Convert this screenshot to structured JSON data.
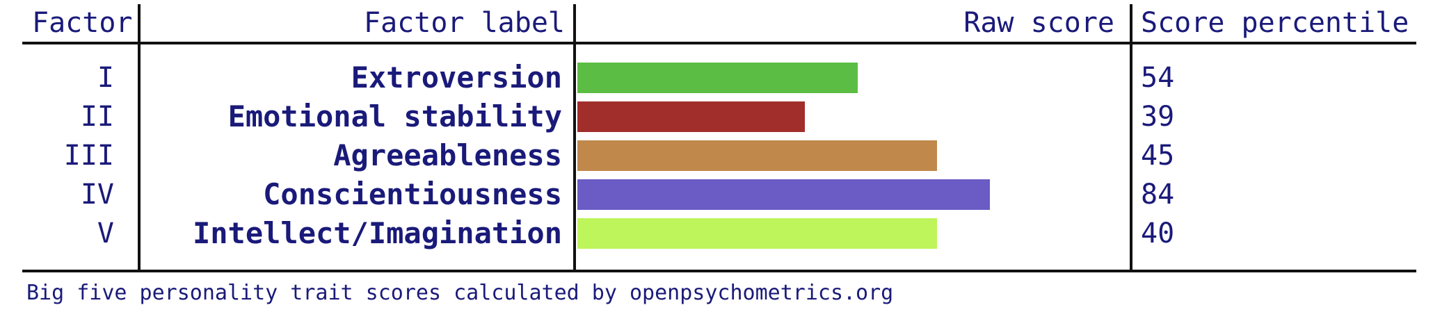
{
  "chart_data": {
    "type": "bar",
    "columns": {
      "factor": "Factor",
      "factor_label": "Factor label",
      "raw_score": "Raw score",
      "score_percentile": "Score percentile"
    },
    "rows": [
      {
        "factor": "I",
        "label": "Extroversion",
        "raw_fraction": 0.53,
        "percentile": "54",
        "color": "#5cbd44"
      },
      {
        "factor": "II",
        "label": "Emotional stability",
        "raw_fraction": 0.43,
        "percentile": "39",
        "color": "#a12e2b"
      },
      {
        "factor": "III",
        "label": "Agreeableness",
        "raw_fraction": 0.68,
        "percentile": "45",
        "color": "#c1884c"
      },
      {
        "factor": "IV",
        "label": "Conscientiousness",
        "raw_fraction": 0.78,
        "percentile": "84",
        "color": "#6a5cc4"
      },
      {
        "factor": "V",
        "label": "Intellect/Imagination",
        "raw_fraction": 0.68,
        "percentile": "40",
        "color": "#bdf55a"
      }
    ],
    "footer": "Big five personality trait scores calculated by openpsychometrics.org"
  }
}
